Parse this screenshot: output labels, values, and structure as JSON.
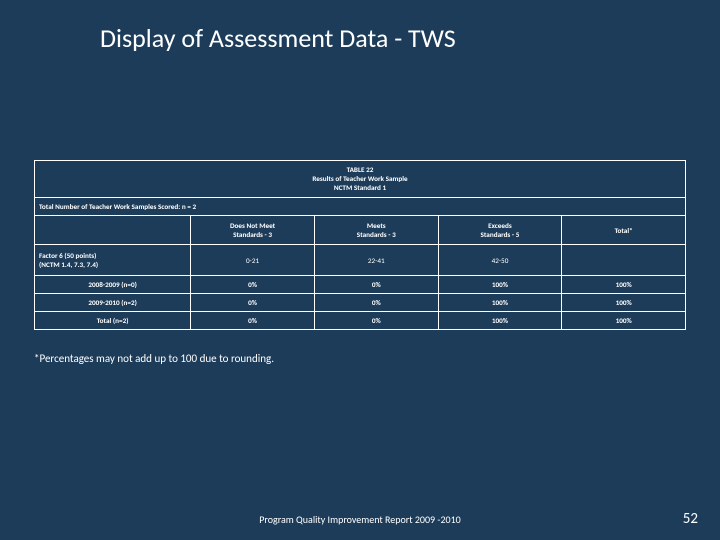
{
  "slide": {
    "title": "Display of Assessment Data - TWS",
    "footnote": "*Percentages may not add up to 100 due to rounding.",
    "footer": "Program Quality Improvement Report 2009 -2010",
    "page_number": "52",
    "background_color": "#1d3c59",
    "text_color": "#ffffff",
    "title_fontsize_pt": 26,
    "body_fontsize_pt": 7
  },
  "table": {
    "type": "table",
    "caption_lines": [
      "TABLE 22",
      "Results of Teacher Work Sample",
      "NCTM Standard 1"
    ],
    "scored_line": "Total Number of Teacher Work Samples Scored:  n = 2",
    "columns": [
      {
        "label": "",
        "width_pct": 24
      },
      {
        "label": "Does Not Meet\nStandards - 3",
        "width_pct": 19
      },
      {
        "label": "Meets\nStandards - 3",
        "width_pct": 19
      },
      {
        "label": "Exceeds\nStandards - 5",
        "width_pct": 19
      },
      {
        "label": "Total*",
        "width_pct": 19
      }
    ],
    "factor_row": {
      "label": "Factor 6 (50 points)\n(NCTM 1.4, 7.3, 7.4)",
      "ranges": [
        "0-21",
        "22-41",
        "42-50",
        ""
      ]
    },
    "data_rows": [
      {
        "label": "2008-2009 (n=0)",
        "cells": [
          "0%",
          "0%",
          "100%",
          "100%"
        ]
      },
      {
        "label": "2009-2010 (n=2)",
        "cells": [
          "0%",
          "0%",
          "100%",
          "100%"
        ]
      },
      {
        "label": "Total (n=2)",
        "cells": [
          "0%",
          "0%",
          "100%",
          "100%"
        ]
      }
    ],
    "border_color": "#ffffff"
  }
}
